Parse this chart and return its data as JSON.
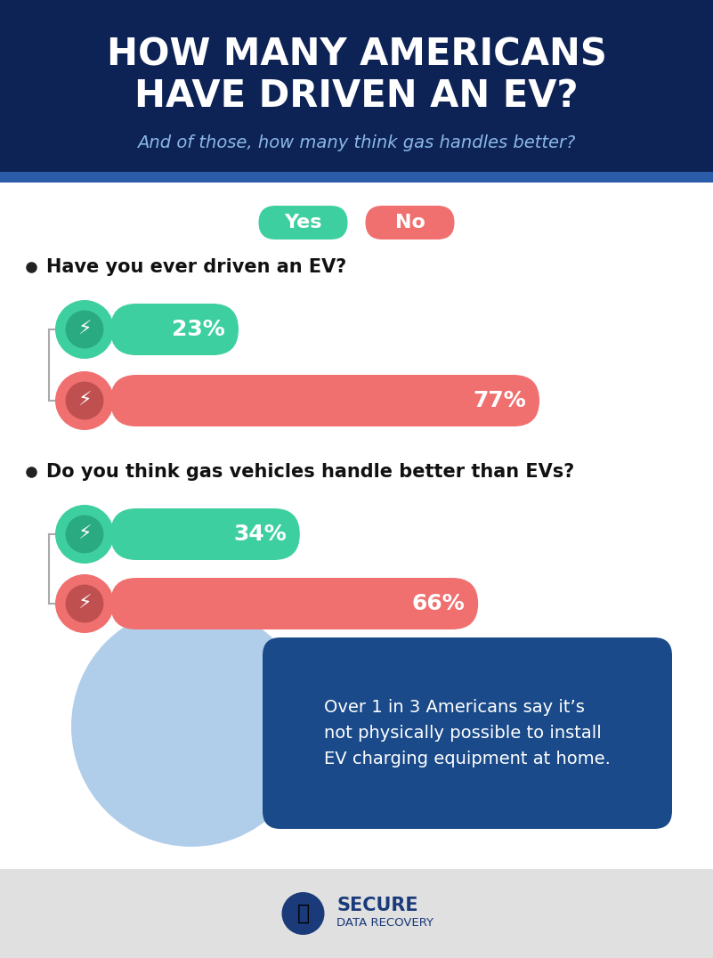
{
  "title_line1": "HOW MANY AMERICANS",
  "title_line2": "HAVE DRIVEN AN EV?",
  "subtitle": "And of those, how many think gas handles better?",
  "header_bg": "#0d2255",
  "header_stripe_color": "#2a5caa",
  "white": "#ffffff",
  "light_blue_text": "#8bb8e8",
  "yes_label": "Yes",
  "no_label": "No",
  "yes_color": "#3ecfa0",
  "no_color": "#f07070",
  "q1_text": "Have you ever driven an EV?",
  "q1_yes_pct": 23,
  "q1_no_pct": 77,
  "q2_text": "Do you think gas vehicles handle better than EVs?",
  "q2_yes_pct": 34,
  "q2_no_pct": 66,
  "bar_green": "#3ecfa0",
  "bar_red": "#f07070",
  "annotation_text": "Over 1 in 3 Americans say it’s\nnot physically possible to install\nEV charging equipment at home.",
  "annotation_bg": "#1a4a8a",
  "ellipse_color": "#a8c8e8",
  "footer_bg": "#e0e0e0",
  "bullet_color": "#222222",
  "question_color": "#111111",
  "bar_label_color": "#ffffff",
  "bar_max": 100,
  "fig_w": 8.01,
  "fig_h": 10.76,
  "dpi": 100
}
